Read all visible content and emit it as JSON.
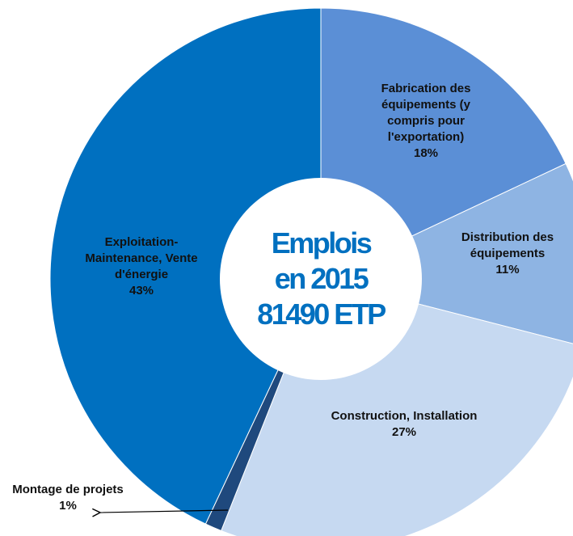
{
  "chart_data": {
    "type": "donut",
    "center_label": [
      "Emplois",
      "en 2015",
      "81490 ETP"
    ],
    "categories": [
      "Fabrication des équipements (y compris pour l'exportation)",
      "Distribution des équipements",
      "Construction, Installation",
      "Montage de projets",
      "Exploitation-Maintenance, Vente d'énergie"
    ],
    "values": [
      18,
      11,
      27,
      1,
      43
    ],
    "value_labels": [
      "18%",
      "11%",
      "27%",
      "1%",
      "43%"
    ],
    "colors": [
      "#5b8fd6",
      "#8eb4e3",
      "#c6d9f1",
      "#1f497d",
      "#0070c0"
    ]
  }
}
